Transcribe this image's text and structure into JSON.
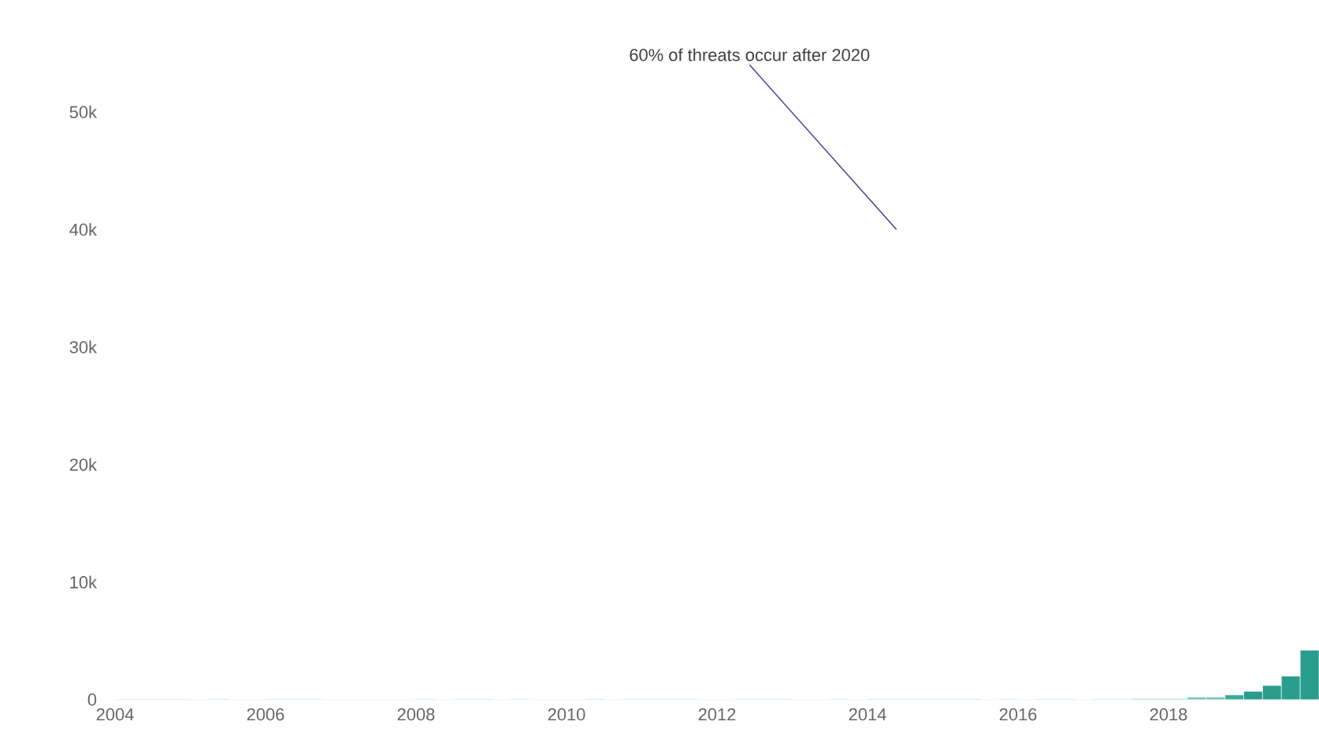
{
  "chart_data": {
    "type": "histogram",
    "bins": [
      2005.0,
      2005.25,
      2005.5,
      2005.75,
      2006.0,
      2006.25,
      2006.5,
      2006.75,
      2007.0,
      2007.25,
      2007.5,
      2007.75,
      2008.0,
      2008.25,
      2008.5,
      2008.75,
      2009.0,
      2009.25,
      2009.5,
      2009.75,
      2010.0,
      2010.25,
      2010.5,
      2010.75,
      2011.0,
      2011.25,
      2011.5,
      2011.75,
      2012.0,
      2012.25,
      2012.5,
      2012.75,
      2013.0,
      2013.25,
      2013.5,
      2013.75,
      2014.0,
      2014.25,
      2014.5,
      2014.75,
      2015.0,
      2015.25,
      2015.5,
      2015.75,
      2016.0,
      2016.25,
      2016.5,
      2016.75,
      2017.0,
      2017.25,
      2017.5,
      2017.75,
      2018.0,
      2018.25,
      2018.5,
      2018.75,
      2019.0,
      2019.25,
      2019.5,
      2019.75,
      2020.0
    ],
    "values": [
      0,
      100,
      0,
      0,
      100,
      100,
      100,
      0,
      0,
      0,
      0,
      0,
      100,
      0,
      100,
      100,
      0,
      100,
      0,
      0,
      0,
      100,
      0,
      100,
      100,
      100,
      100,
      0,
      0,
      100,
      100,
      100,
      0,
      0,
      100,
      0,
      100,
      100,
      100,
      100,
      100,
      100,
      0,
      100,
      0,
      100,
      100,
      0,
      100,
      100,
      100,
      100,
      100,
      200,
      200,
      400,
      700,
      1200,
      2000,
      4200
    ],
    "colors": [
      "#dbe8f5",
      "#dbe8f5",
      "#dbe8f5",
      "#dbe8f5",
      "#dbe8f5",
      "#dbe8f5",
      "#dbe8f5",
      "#dbe8f5",
      "#dbe8f5",
      "#dbe8f5",
      "#dbe8f5",
      "#dbe8f5",
      "#dbe8f5",
      "#dbe8f5",
      "#dbe8f5",
      "#dbe8f5",
      "#dbe8f5",
      "#dbe8f5",
      "#dbe8f5",
      "#dbe8f5",
      "#dbe8f5",
      "#dbe8f5",
      "#dbe8f5",
      "#dbe8f5",
      "#dbe8f5",
      "#dbe8f5",
      "#dbe8f5",
      "#dbe8f5",
      "#dbe8f5",
      "#dbe8f5",
      "#dbe8f5",
      "#dbe8f5",
      "#dbe8f5",
      "#dbe8f5",
      "#dbe8f5",
      "#dbe8f5",
      "#dbe8f5",
      "#dbe8f5",
      "#dbe8f5",
      "#dbe8f5",
      "#dbe8f5",
      "#dbe8f5",
      "#dbe8f5",
      "#dbe8f5",
      "#dbe8f5",
      "#dbe8f5",
      "#dbe8f5",
      "#dbe8f5",
      "#dbe8f5",
      "#dbe8f5",
      "#a8dcd3",
      "#a8dcd3",
      "#a8dcd3",
      "#6cc2b3",
      "#6cc2b3",
      "#3aa898",
      "#2a9d8f",
      "#2a9d8f",
      "#2a9d8f",
      "#2a9d8f"
    ],
    "xlim": [
      2004,
      2020
    ],
    "xticks": [
      2004,
      2006,
      2008,
      2010,
      2012,
      2014,
      2016,
      2018
    ],
    "ylim": [
      0,
      50000
    ],
    "yticks": [
      0,
      {
        "value": 10000,
        "label": "10k"
      },
      {
        "value": 20000,
        "label": "20k"
      },
      {
        "value": 30000,
        "label": "30k"
      },
      {
        "value": 40000,
        "label": "40k"
      },
      {
        "value": 50000,
        "label": "50k"
      }
    ],
    "annotations": [
      "60% of threats occur after 2020"
    ]
  }
}
